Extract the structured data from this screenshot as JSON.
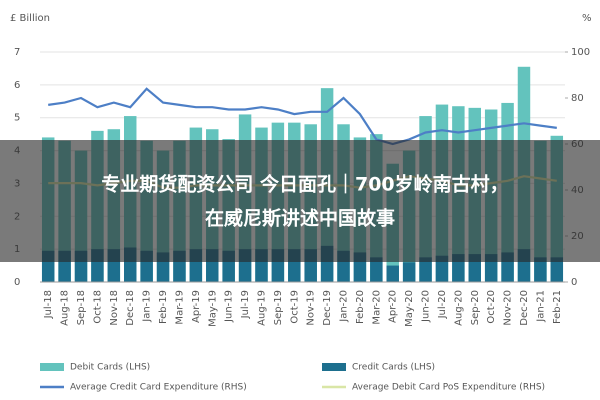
{
  "chart_data": {
    "type": "bar",
    "y_label": "£ Billion",
    "y2_label": "%",
    "categories": [
      "Jul-18",
      "Aug-18",
      "Sep-18",
      "Oct-18",
      "Nov-18",
      "Dec-18",
      "Jan-19",
      "Feb-19",
      "Mar-19",
      "Apr-19",
      "May-19",
      "Jun-19",
      "Jul-19",
      "Aug-19",
      "Sep-19",
      "Oct-19",
      "Nov-19",
      "Dec-19",
      "Jan-20",
      "Feb-20",
      "Mar-20",
      "Apr-20",
      "May-20",
      "Jun-20",
      "Jul-20",
      "Aug-20",
      "Sep-20",
      "Oct-20",
      "Nov-20",
      "Dec-20",
      "Jan-21",
      "Feb-21"
    ],
    "series": [
      {
        "name": "Debit Cards (LHS)",
        "type": "bar",
        "color": "#63c3bd",
        "values": [
          4.4,
          4.3,
          4.0,
          4.6,
          4.65,
          5.05,
          4.3,
          4.0,
          4.3,
          4.7,
          4.65,
          4.35,
          5.1,
          4.7,
          4.85,
          4.85,
          4.8,
          5.9,
          4.8,
          4.4,
          4.5,
          3.6,
          4.0,
          5.05,
          5.4,
          5.35,
          5.3,
          5.25,
          5.45,
          6.55,
          4.3,
          4.45
        ]
      },
      {
        "name": "Credit Cards (LHS)",
        "type": "bar",
        "color": "#1d6f8e",
        "values": [
          0.95,
          0.95,
          0.95,
          1.0,
          1.0,
          1.05,
          0.95,
          0.9,
          0.95,
          1.0,
          1.0,
          0.95,
          1.0,
          1.0,
          1.0,
          1.0,
          1.0,
          1.1,
          0.95,
          0.9,
          0.75,
          0.5,
          0.6,
          0.75,
          0.8,
          0.85,
          0.85,
          0.85,
          0.9,
          1.0,
          0.75,
          0.75
        ]
      },
      {
        "name": "Average Credit Card Expenditure (RHS)",
        "type": "line",
        "axis": "y2",
        "color": "#4d7fc6",
        "values": [
          77,
          78,
          80,
          76,
          78,
          76,
          84,
          78,
          77,
          76,
          76,
          75,
          75,
          76,
          75,
          73,
          74,
          74,
          80,
          73,
          62,
          60,
          62,
          65,
          66,
          65,
          66,
          67,
          68,
          69,
          68,
          67
        ]
      },
      {
        "name": "Average Debit Card PoS Expenditure (RHS)",
        "type": "line",
        "axis": "y2",
        "color": "#d9e6a6",
        "values": [
          43,
          43,
          43,
          42,
          43,
          44,
          44,
          41,
          41,
          42,
          42,
          42,
          42,
          42,
          42,
          42,
          42,
          42,
          42,
          41,
          42,
          44,
          46,
          45,
          44,
          42,
          42,
          43,
          44,
          46,
          45,
          44
        ]
      }
    ],
    "ylim": [
      0,
      7
    ],
    "yticks": [
      0,
      1,
      2,
      3,
      4,
      5,
      6,
      7
    ],
    "y2lim": [
      0,
      100
    ],
    "y2ticks": [
      0,
      20,
      40,
      60,
      80,
      100
    ],
    "grid": true,
    "legend": "bottom"
  },
  "overlay_text": [
    "专业期货配资公司 今日面孔｜700岁岭南古村，",
    "在威尼斯讲述中国故事"
  ]
}
